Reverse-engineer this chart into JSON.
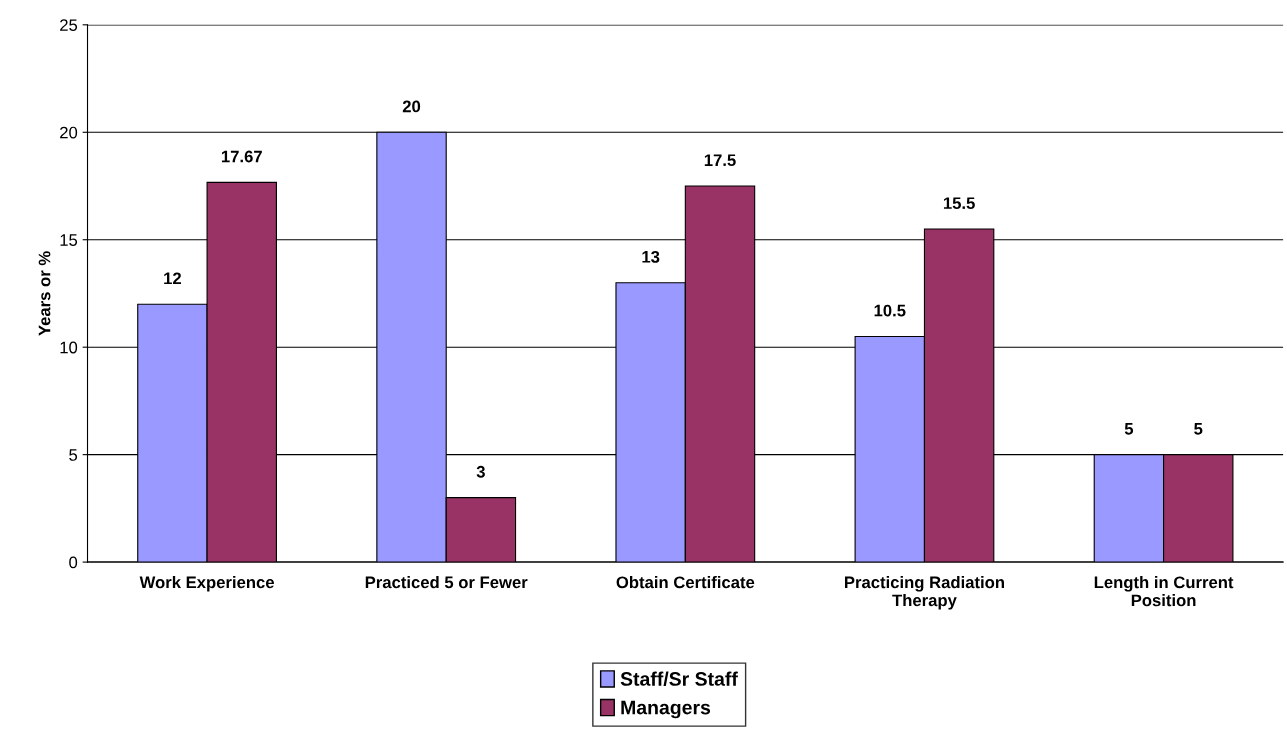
{
  "chart_data": {
    "type": "bar",
    "ylabel": "Years or %",
    "categories": [
      "Work Experience",
      "Practiced 5 or Fewer",
      "Obtain Certificate",
      "Practicing Radiation Therapy",
      "Length in Current Position"
    ],
    "series": [
      {
        "name": "Staff/Sr Staff",
        "color": "#9999ff",
        "values": [
          12,
          20,
          13,
          10.5,
          5
        ]
      },
      {
        "name": "Managers",
        "color": "#993366",
        "values": [
          17.67,
          3,
          17.5,
          15.5,
          5
        ]
      }
    ],
    "ylim": [
      0,
      25
    ],
    "yticks": [
      0,
      5,
      10,
      15,
      20,
      25
    ],
    "grid": "y",
    "legend": "bottom",
    "data_labels": true
  }
}
